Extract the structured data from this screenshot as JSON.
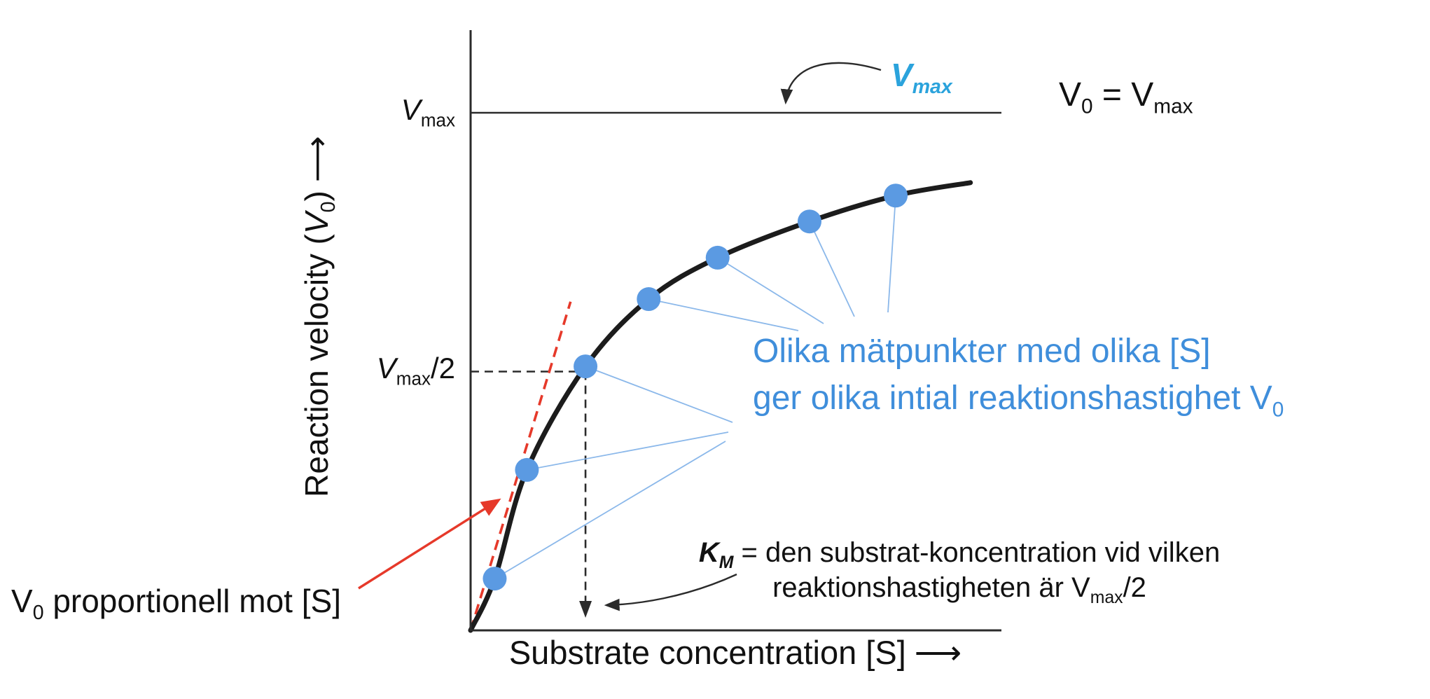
{
  "chart_data": {
    "type": "line",
    "xlabel": "Substrate concentration [S] ⟶",
    "ylabel": "Reaction velocity (V0) ⟶",
    "y_tick_labels": [
      "Vmax",
      "Vmax/2"
    ],
    "y_tick_values_vmax_units": [
      1.0,
      0.5
    ],
    "x_axis_range_km_units": [
      0,
      4.62
    ],
    "y_axis_range_vmax_units": [
      0,
      1.16
    ],
    "km_x_km_units": 1.0,
    "vmax_asymptote_v": 1.0,
    "grid": "off",
    "legend": "none",
    "curve_points": {
      "s_km_units": [
        0,
        0.21,
        0.49,
        1.0,
        1.55,
        2.15,
        2.95,
        3.7,
        4.35
      ],
      "v0_vmax_units": [
        0,
        0.1,
        0.31,
        0.51,
        0.64,
        0.72,
        0.79,
        0.84,
        0.865
      ]
    },
    "data_points": {
      "s_km_units": [
        0.21,
        0.49,
        1.0,
        1.55,
        2.15,
        2.95,
        3.7
      ],
      "v0_vmax_units": [
        0.1,
        0.31,
        0.51,
        0.64,
        0.72,
        0.79,
        0.84
      ]
    },
    "tangent_line": {
      "s_km_units": [
        0,
        0.87
      ],
      "v0_vmax_units": [
        0,
        0.635
      ]
    },
    "annotations": [
      "Vmax (blue callout with arrow to asymptote)",
      "V0 = Vmax",
      "Olika mätpunkter med olika [S] ger olika intial reaktionshastighet V0",
      "V0 proportionell mot [S]",
      "KM = den substrat-koncentration vid vilken reaktionshastigheten är Vmax/2"
    ],
    "colors": {
      "curve": "#1c1c1c",
      "axis": "#2b2b2b",
      "data_point": "#5b9ae2",
      "connector": "#8bb8ea",
      "red_accent": "#e6392a",
      "blue_text": "#3f8edb",
      "vmax_callout_blue": "#2ba3dc"
    }
  },
  "labels": {
    "y_tick_vmax": {
      "v": "V",
      "sub": "max"
    },
    "y_tick_vmax_half": {
      "v": "V",
      "sub": "max",
      "post": "/2"
    },
    "top_right_equation": {
      "v1": "V",
      "s1": "0",
      "eq": " = V",
      "s2": "max"
    },
    "vmax_callout": {
      "v": "V",
      "sub": "max"
    },
    "y_axis": {
      "pre": "Reaction velocity (",
      "v": "V",
      "sub": "0",
      "post": ")",
      "arrow": "⟶"
    },
    "x_axis": {
      "text": "Substrate concentration [S]",
      "arrow": "⟶"
    },
    "prop_note": {
      "v": "V",
      "sub": "0",
      "rest": " proportionell mot [S]"
    },
    "blue_note": {
      "line1": "Olika mätpunkter med olika [S]",
      "line2_pre": "ger olika intial reaktionshastighet V",
      "line2_sub": "0"
    },
    "km_note": {
      "k": "K",
      "k_sub": "M",
      "rest1": " = den substrat-koncentration vid vilken",
      "pre2": "reaktionshastigheten är V",
      "sub2": "max",
      "post2": "/2"
    }
  }
}
